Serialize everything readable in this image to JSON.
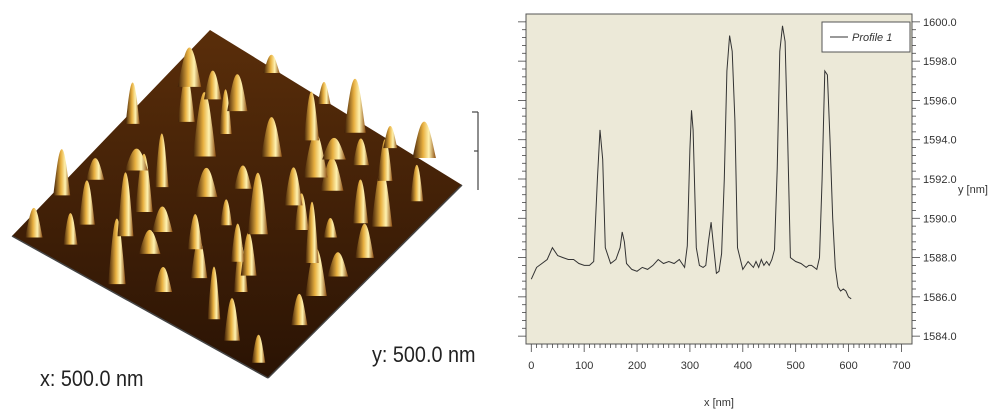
{
  "afm": {
    "x_size_label": "x: 500.0 nm",
    "y_size_label": "y: 500.0 nm",
    "colors": {
      "dark": "#3a1b05",
      "mid": "#8a4a0c",
      "light": "#e8b040",
      "peak": "#fff2b0"
    }
  },
  "chart_data": {
    "type": "line",
    "xlabel": "x [nm]",
    "ylabel": "y [nm]",
    "xlim": [
      -10,
      720
    ],
    "ylim": [
      1583.6,
      1600.4
    ],
    "x_ticks": [
      0,
      100,
      200,
      300,
      400,
      500,
      600,
      700
    ],
    "y_ticks": [
      1584.0,
      1586.0,
      1588.0,
      1590.0,
      1592.0,
      1594.0,
      1596.0,
      1598.0,
      1600.0
    ],
    "y_tick_labels": [
      "1584.0",
      "1586.0",
      "1588.0",
      "1590.0",
      "1592.0",
      "1594.0",
      "1596.0",
      "1598.0",
      "1600.0"
    ],
    "legend": {
      "position": "top-right"
    },
    "colors": {
      "plot_bg": "#ece9d8",
      "line": "#333333"
    },
    "series": [
      {
        "name": "Profile 1",
        "x": [
          0,
          10,
          20,
          30,
          40,
          50,
          60,
          70,
          80,
          90,
          100,
          110,
          118,
          125,
          130,
          135,
          140,
          150,
          160,
          168,
          172,
          176,
          180,
          190,
          200,
          210,
          220,
          230,
          240,
          250,
          260,
          270,
          280,
          290,
          295,
          300,
          303,
          306,
          312,
          318,
          325,
          330,
          335,
          340,
          345,
          350,
          355,
          360,
          365,
          370,
          375,
          380,
          385,
          390,
          400,
          410,
          420,
          425,
          430,
          435,
          440,
          445,
          450,
          455,
          460,
          465,
          470,
          475,
          480,
          485,
          490,
          500,
          510,
          520,
          525,
          530,
          535,
          540,
          545,
          550,
          555,
          560,
          565,
          570,
          575,
          580,
          585,
          590,
          595,
          600,
          605
        ],
        "y": [
          1586.9,
          1587.5,
          1587.7,
          1587.9,
          1588.5,
          1588.1,
          1588.0,
          1587.9,
          1587.9,
          1587.7,
          1587.6,
          1587.6,
          1587.8,
          1592.0,
          1594.5,
          1593.0,
          1588.5,
          1587.7,
          1587.9,
          1588.5,
          1589.3,
          1588.8,
          1587.7,
          1587.4,
          1587.3,
          1587.5,
          1587.4,
          1587.6,
          1587.9,
          1587.7,
          1587.8,
          1587.7,
          1587.9,
          1587.5,
          1588.6,
          1593.5,
          1595.5,
          1594.5,
          1588.5,
          1587.6,
          1587.5,
          1587.6,
          1588.8,
          1589.8,
          1588.5,
          1587.2,
          1587.3,
          1588.2,
          1592.0,
          1597.5,
          1599.3,
          1598.5,
          1595.0,
          1588.5,
          1587.4,
          1587.8,
          1587.5,
          1587.8,
          1587.5,
          1587.9,
          1587.6,
          1587.8,
          1587.6,
          1587.9,
          1588.4,
          1592.5,
          1598.5,
          1599.8,
          1599.0,
          1594.0,
          1588.0,
          1587.8,
          1587.7,
          1587.5,
          1587.6,
          1587.6,
          1587.5,
          1587.4,
          1588.0,
          1592.0,
          1597.5,
          1597.3,
          1594.0,
          1590.0,
          1587.5,
          1586.5,
          1586.3,
          1586.4,
          1586.3,
          1586.0,
          1585.9
        ]
      }
    ]
  }
}
